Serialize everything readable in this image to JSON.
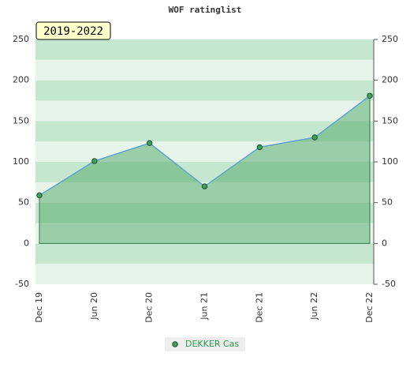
{
  "chart_data": {
    "type": "line",
    "title": "WOF ratinglist",
    "annotation": "2019-2022",
    "categories": [
      "Dec 19",
      "Jun 20",
      "Dec 20",
      "Jun 21",
      "Dec 21",
      "Jun 22",
      "Dec 22"
    ],
    "series": [
      {
        "name": "DEKKER Cas",
        "color": "#3f9f5c",
        "values": [
          59,
          101,
          123,
          70,
          118,
          130,
          181
        ]
      }
    ],
    "ylim": [
      -50,
      250
    ],
    "yticks": [
      -50,
      0,
      50,
      100,
      150,
      200,
      250
    ],
    "grid": true
  }
}
